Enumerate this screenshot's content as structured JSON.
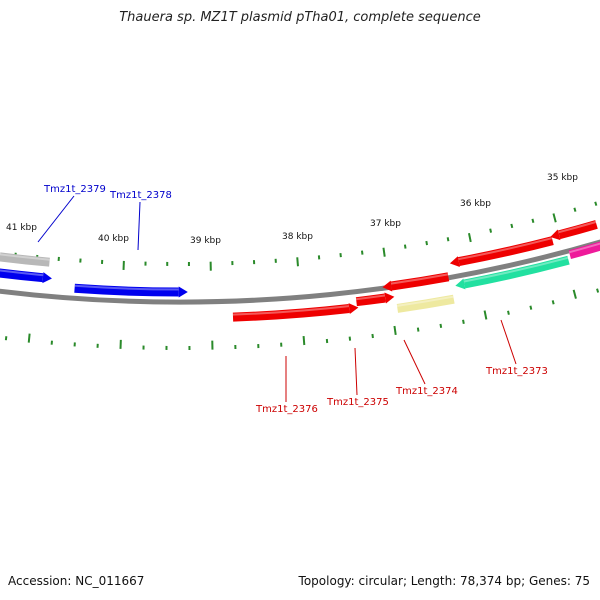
{
  "title": "Thauera sp. MZ1T plasmid pTha01, complete sequence",
  "footer": {
    "accession": "Accession: NC_011667",
    "summary": "Topology: circular; Length: 78,374 bp; Genes: 75"
  },
  "scale_labels": [
    "41 kbp",
    "40 kbp",
    "39 kbp",
    "38 kbp",
    "37 kbp",
    "36 kbp",
    "35 kbp"
  ],
  "gene_labels": [
    {
      "name": "Tmz1t_2379",
      "strand": "forward"
    },
    {
      "name": "Tmz1t_2378",
      "strand": "forward"
    },
    {
      "name": "Tmz1t_2376",
      "strand": "reverse"
    },
    {
      "name": "Tmz1t_2375",
      "strand": "reverse"
    },
    {
      "name": "Tmz1t_2374",
      "strand": "reverse"
    },
    {
      "name": "Tmz1t_2373",
      "strand": "reverse"
    }
  ],
  "colors": {
    "forward_label": "#0000cc",
    "reverse_label": "#cc0000",
    "tick": "#2a8a2a",
    "backbone": "#808080",
    "blue": "#0000ee",
    "gray": "#b8b8b8",
    "red": "#ee0000",
    "yellow": "#eee9a0",
    "teal": "#22e0a0",
    "magenta": "#ee1a9a"
  }
}
